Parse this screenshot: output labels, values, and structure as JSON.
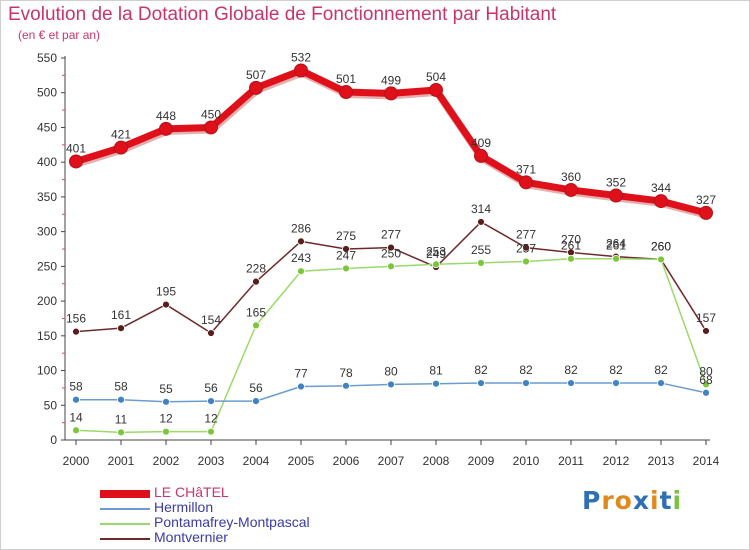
{
  "header": {
    "title": "Evolution de la Dotation Globale de Fonctionnement par Habitant",
    "subtitle": "(en € et par an)"
  },
  "logo": {
    "text": "Proxiti",
    "letter_colors": [
      "#2f6fb5",
      "#e08a1e",
      "#e08a1e",
      "#2f6fb5",
      "#e08a1e",
      "#2f6fb5",
      "#7cc242"
    ]
  },
  "colors": {
    "axis": "#444444",
    "grid_ticks": "#e0457a",
    "background": "#ffffff"
  },
  "chart_data": {
    "type": "line",
    "title": "Evolution de la Dotation Globale de Fonctionnement par Habitant",
    "subtitle": "(en € et par an)",
    "xlabel": "",
    "ylabel": "",
    "ylim": [
      0,
      550
    ],
    "yticks": [
      0,
      50,
      100,
      150,
      200,
      250,
      300,
      350,
      400,
      450,
      500,
      550
    ],
    "grid": false,
    "legend_position": "bottom-left",
    "categories": [
      "2000",
      "2001",
      "2002",
      "2003",
      "2004",
      "2005",
      "2006",
      "2007",
      "2008",
      "2009",
      "2010",
      "2011",
      "2012",
      "2013",
      "2014"
    ],
    "series": [
      {
        "name": "LE CHâTEL",
        "color": "#e0101a",
        "marker_color": "#e0101a",
        "values": [
          401,
          421,
          448,
          450,
          507,
          532,
          501,
          499,
          504,
          409,
          371,
          360,
          352,
          344,
          327
        ],
        "labels": [
          "401",
          "421",
          "448",
          "450",
          "507",
          "532",
          "501",
          "499",
          "504",
          "409",
          "371",
          "360",
          "352",
          "344",
          "327"
        ]
      },
      {
        "name": "Hermillon",
        "color": "#6a9ccf",
        "marker_color": "#3f82c6",
        "values": [
          58,
          58,
          55,
          56,
          56,
          77,
          78,
          80,
          81,
          82,
          82,
          82,
          82,
          82,
          68
        ],
        "labels": [
          "58",
          "58",
          "55",
          "56",
          "56",
          "77",
          "78",
          "80",
          "81",
          "82",
          "82",
          "82",
          "82",
          "82",
          "68"
        ]
      },
      {
        "name": "Pontamafrey-Montpascal",
        "color": "#9bd96a",
        "marker_color": "#7cc63c",
        "values": [
          14,
          11,
          12,
          12,
          165,
          243,
          247,
          250,
          253,
          255,
          257,
          261,
          261,
          260,
          80
        ],
        "labels": [
          "14",
          "11",
          "12",
          "12",
          "165",
          "243",
          "247",
          "250",
          "253",
          "255",
          "257",
          "261",
          "261",
          "260",
          "80"
        ]
      },
      {
        "name": "Montvernier",
        "color": "#6e2a2a",
        "marker_color": "#5a1c1c",
        "values": [
          156,
          161,
          195,
          154,
          228,
          286,
          275,
          277,
          249,
          314,
          277,
          270,
          264,
          260,
          157
        ],
        "labels": [
          "156",
          "161",
          "195",
          "154",
          "228",
          "286",
          "275",
          "277",
          "249",
          "314",
          "277",
          "270",
          "264",
          "260",
          "157"
        ]
      }
    ]
  }
}
